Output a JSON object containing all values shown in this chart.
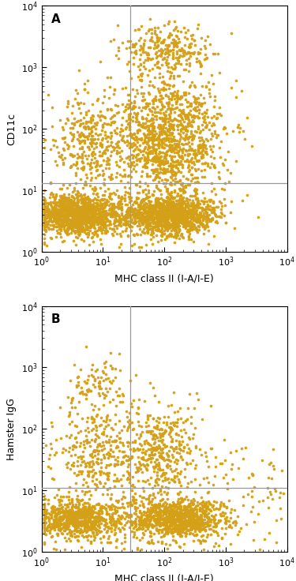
{
  "dot_color": "#D4A017",
  "dot_size": 7.0,
  "dot_alpha": 0.95,
  "background_color": "#ffffff",
  "panel_A": {
    "label": "A",
    "ylabel": "CD11c",
    "xlabel": "MHC class II (I-A/I-E)",
    "xline": 28,
    "yline": 13,
    "xlim": [
      1,
      10000
    ],
    "ylim": [
      1,
      10000
    ],
    "n_cells": 4500,
    "seed": 42
  },
  "panel_B": {
    "label": "B",
    "ylabel": "Hamster IgG",
    "xlabel": "MHC class II (I-A/I-E)",
    "xline": 28,
    "yline": 11,
    "xlim": [
      1,
      10000
    ],
    "ylim": [
      1,
      10000
    ],
    "n_cells": 2800,
    "seed": 77
  },
  "line_color": "#999999",
  "line_width": 0.9,
  "axis_label_fontsize": 9,
  "tick_fontsize": 8,
  "panel_label_fontsize": 11
}
